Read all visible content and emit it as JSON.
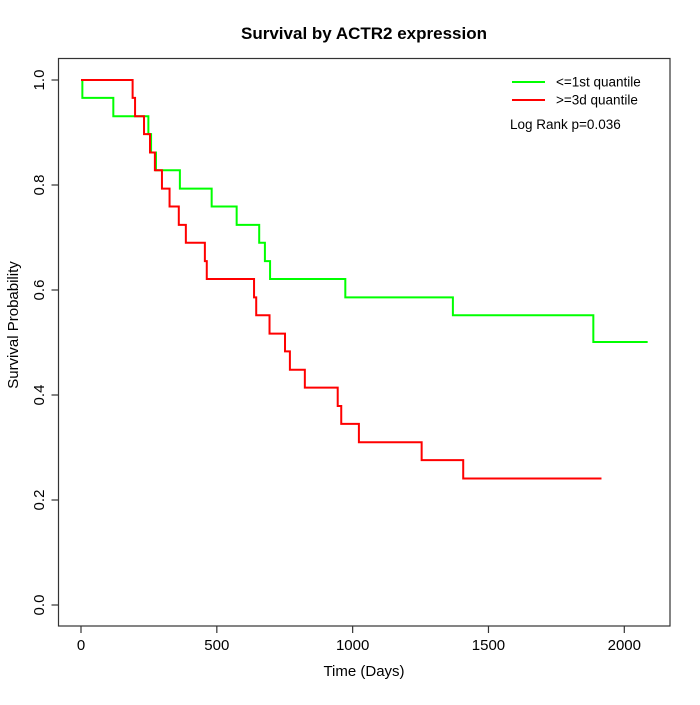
{
  "page": {
    "title": "Survival by ACTR2 expression"
  },
  "chart_data": {
    "type": "line",
    "subtype": "kaplan-meier-step",
    "title": "Survival by ACTR2 expression",
    "xlabel": "Time (Days)",
    "ylabel": "Survival Probability",
    "xlim": [
      0,
      2100
    ],
    "ylim": [
      0.0,
      1.0
    ],
    "x_ticks": [
      0,
      500,
      1000,
      1500,
      2000
    ],
    "x_tick_labels": [
      "0",
      "500",
      "1000",
      "1500",
      "2000"
    ],
    "y_ticks": [
      0.0,
      0.2,
      0.4,
      0.6,
      0.8,
      1.0
    ],
    "y_tick_labels": [
      "0.0",
      "0.2",
      "0.4",
      "0.6",
      "0.8",
      "1.0"
    ],
    "grid": false,
    "legend_position": "top-right",
    "annotation": "Log Rank p=0.036",
    "series": [
      {
        "name": "<=1st quantile",
        "color": "#00FF00",
        "end_time": 2086,
        "steps": [
          [
            0,
            1.0
          ],
          [
            5,
            0.966
          ],
          [
            119,
            0.931
          ],
          [
            248,
            0.897
          ],
          [
            258,
            0.862
          ],
          [
            276,
            0.828
          ],
          [
            364,
            0.793
          ],
          [
            481,
            0.759
          ],
          [
            573,
            0.724
          ],
          [
            656,
            0.69
          ],
          [
            677,
            0.655
          ],
          [
            696,
            0.621
          ],
          [
            973,
            0.586
          ],
          [
            1369,
            0.552
          ],
          [
            1886,
            0.501
          ]
        ]
      },
      {
        "name": ">=3d quantile",
        "color": "#FF0000",
        "end_time": 1916,
        "steps": [
          [
            0,
            1.0
          ],
          [
            190,
            0.966
          ],
          [
            199,
            0.931
          ],
          [
            232,
            0.897
          ],
          [
            254,
            0.862
          ],
          [
            272,
            0.828
          ],
          [
            298,
            0.793
          ],
          [
            326,
            0.759
          ],
          [
            360,
            0.724
          ],
          [
            386,
            0.69
          ],
          [
            456,
            0.655
          ],
          [
            463,
            0.621
          ],
          [
            637,
            0.586
          ],
          [
            645,
            0.552
          ],
          [
            694,
            0.517
          ],
          [
            751,
            0.483
          ],
          [
            769,
            0.448
          ],
          [
            824,
            0.414
          ],
          [
            945,
            0.379
          ],
          [
            958,
            0.345
          ],
          [
            1023,
            0.31
          ],
          [
            1254,
            0.276
          ],
          [
            1407,
            0.241
          ]
        ]
      }
    ]
  },
  "legend": {
    "items": [
      {
        "label": "<=1st quantile",
        "color": "#00FF00"
      },
      {
        "label": ">=3d quantile",
        "color": "#FF0000"
      }
    ],
    "annotation": "Log Rank p=0.036"
  }
}
